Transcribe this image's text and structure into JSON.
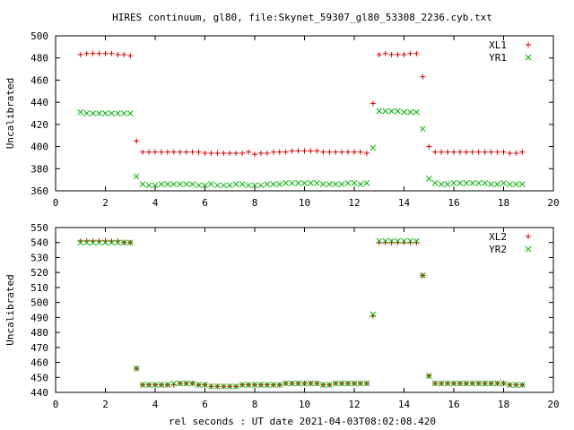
{
  "title": "HIRES continuum, gl80, file:Skynet_59307_gl80_53308_2236.cyb.txt",
  "xlabel": "rel seconds : UT date 2021-04-03T08:02:08.420",
  "colors": {
    "red": "#d40000",
    "green": "#00b000"
  },
  "chart_data": [
    {
      "type": "scatter",
      "ylabel": "Uncalibrated",
      "xlim": [
        0,
        20
      ],
      "ylim": [
        360,
        500
      ],
      "xticks": [
        0,
        2,
        4,
        6,
        8,
        10,
        12,
        14,
        16,
        18,
        20
      ],
      "yticks": [
        360,
        380,
        400,
        420,
        440,
        460,
        480,
        500
      ],
      "legend_position": "top-right",
      "series": [
        {
          "name": "XL1",
          "marker": "plus",
          "color": "#d40000",
          "x": [
            1.0,
            1.25,
            1.5,
            1.75,
            2.0,
            2.25,
            2.5,
            2.75,
            3.0,
            3.25,
            3.5,
            3.75,
            4.0,
            4.25,
            4.5,
            4.75,
            5.0,
            5.25,
            5.5,
            5.75,
            6.0,
            6.25,
            6.5,
            6.75,
            7.0,
            7.25,
            7.5,
            7.75,
            8.0,
            8.25,
            8.5,
            8.75,
            9.0,
            9.25,
            9.5,
            9.75,
            10.0,
            10.25,
            10.5,
            10.75,
            11.0,
            11.25,
            11.5,
            11.75,
            12.0,
            12.25,
            12.5,
            12.75,
            13.0,
            13.25,
            13.5,
            13.75,
            14.0,
            14.25,
            14.5,
            14.75,
            15.0,
            15.25,
            15.5,
            15.75,
            16.0,
            16.25,
            16.5,
            16.75,
            17.0,
            17.25,
            17.5,
            17.75,
            18.0,
            18.25,
            18.5,
            18.75
          ],
          "y": [
            483,
            484,
            484,
            484,
            484,
            484,
            483,
            483,
            482,
            405,
            395,
            395,
            395,
            395,
            395,
            395,
            395,
            395,
            395,
            395,
            394,
            394,
            394,
            394,
            394,
            394,
            394,
            395,
            393,
            394,
            394,
            395,
            395,
            395,
            396,
            396,
            396,
            396,
            396,
            395,
            395,
            395,
            395,
            395,
            395,
            395,
            394,
            439,
            483,
            484,
            483,
            483,
            483,
            484,
            484,
            463,
            400,
            395,
            395,
            395,
            395,
            395,
            395,
            395,
            395,
            395,
            395,
            395,
            395,
            394,
            394,
            395
          ]
        },
        {
          "name": "YR1",
          "marker": "cross",
          "color": "#00b000",
          "x": [
            1.0,
            1.25,
            1.5,
            1.75,
            2.0,
            2.25,
            2.5,
            2.75,
            3.0,
            3.25,
            3.5,
            3.75,
            4.0,
            4.25,
            4.5,
            4.75,
            5.0,
            5.25,
            5.5,
            5.75,
            6.0,
            6.25,
            6.5,
            6.75,
            7.0,
            7.25,
            7.5,
            7.75,
            8.0,
            8.25,
            8.5,
            8.75,
            9.0,
            9.25,
            9.5,
            9.75,
            10.0,
            10.25,
            10.5,
            10.75,
            11.0,
            11.25,
            11.5,
            11.75,
            12.0,
            12.25,
            12.5,
            12.75,
            13.0,
            13.25,
            13.5,
            13.75,
            14.0,
            14.25,
            14.5,
            14.75,
            15.0,
            15.25,
            15.5,
            15.75,
            16.0,
            16.25,
            16.5,
            16.75,
            17.0,
            17.25,
            17.5,
            17.75,
            18.0,
            18.25,
            18.5,
            18.75
          ],
          "y": [
            431,
            430,
            430,
            430,
            430,
            430,
            430,
            430,
            430,
            373,
            366,
            365,
            365,
            366,
            366,
            366,
            366,
            366,
            366,
            365,
            365,
            366,
            365,
            365,
            365,
            366,
            366,
            365,
            365,
            365,
            366,
            366,
            366,
            367,
            367,
            367,
            367,
            367,
            367,
            366,
            366,
            366,
            366,
            367,
            367,
            366,
            367,
            399,
            432,
            432,
            432,
            432,
            431,
            431,
            431,
            416,
            371,
            367,
            366,
            366,
            367,
            367,
            367,
            367,
            367,
            367,
            366,
            366,
            367,
            366,
            366,
            366
          ]
        }
      ]
    },
    {
      "type": "scatter",
      "ylabel": "Uncalibrated",
      "xlim": [
        0,
        20
      ],
      "ylim": [
        440,
        550
      ],
      "xticks": [
        0,
        2,
        4,
        6,
        8,
        10,
        12,
        14,
        16,
        18,
        20
      ],
      "yticks": [
        440,
        450,
        460,
        470,
        480,
        490,
        500,
        510,
        520,
        530,
        540,
        550
      ],
      "legend_position": "top-right",
      "series": [
        {
          "name": "XL2",
          "marker": "plus",
          "color": "#d40000",
          "x": [
            1.0,
            1.25,
            1.5,
            1.75,
            2.0,
            2.25,
            2.5,
            2.75,
            3.0,
            3.25,
            3.5,
            3.75,
            4.0,
            4.25,
            4.5,
            4.75,
            5.0,
            5.25,
            5.5,
            5.75,
            6.0,
            6.25,
            6.5,
            6.75,
            7.0,
            7.25,
            7.5,
            7.75,
            8.0,
            8.25,
            8.5,
            8.75,
            9.0,
            9.25,
            9.5,
            9.75,
            10.0,
            10.25,
            10.5,
            10.75,
            11.0,
            11.25,
            11.5,
            11.75,
            12.0,
            12.25,
            12.5,
            12.75,
            13.0,
            13.25,
            13.5,
            13.75,
            14.0,
            14.25,
            14.5,
            14.75,
            15.0,
            15.25,
            15.5,
            15.75,
            16.0,
            16.25,
            16.5,
            16.75,
            17.0,
            17.25,
            17.5,
            17.75,
            18.0,
            18.25,
            18.5,
            18.75
          ],
          "y": [
            541,
            541,
            541,
            541,
            541,
            541,
            541,
            540,
            540,
            456,
            445,
            445,
            445,
            445,
            445,
            445,
            446,
            446,
            446,
            445,
            445,
            444,
            444,
            444,
            444,
            444,
            445,
            445,
            445,
            445,
            445,
            445,
            445,
            446,
            446,
            446,
            446,
            446,
            446,
            445,
            445,
            446,
            446,
            446,
            446,
            446,
            446,
            491,
            540,
            540,
            540,
            540,
            540,
            540,
            540,
            518,
            451,
            446,
            446,
            446,
            446,
            446,
            446,
            446,
            446,
            446,
            446,
            446,
            446,
            445,
            445,
            445
          ]
        },
        {
          "name": "YR2",
          "marker": "cross",
          "color": "#00b000",
          "x": [
            1.0,
            1.25,
            1.5,
            1.75,
            2.0,
            2.25,
            2.5,
            2.75,
            3.0,
            3.25,
            3.5,
            3.75,
            4.0,
            4.25,
            4.5,
            4.75,
            5.0,
            5.25,
            5.5,
            5.75,
            6.0,
            6.25,
            6.5,
            6.75,
            7.0,
            7.25,
            7.5,
            7.75,
            8.0,
            8.25,
            8.5,
            8.75,
            9.0,
            9.25,
            9.5,
            9.75,
            10.0,
            10.25,
            10.5,
            10.75,
            11.0,
            11.25,
            11.5,
            11.75,
            12.0,
            12.25,
            12.5,
            12.75,
            13.0,
            13.25,
            13.5,
            13.75,
            14.0,
            14.25,
            14.5,
            14.75,
            15.0,
            15.25,
            15.5,
            15.75,
            16.0,
            16.25,
            16.5,
            16.75,
            17.0,
            17.25,
            17.5,
            17.75,
            18.0,
            18.25,
            18.5,
            18.75
          ],
          "y": [
            540,
            540,
            540,
            540,
            540,
            540,
            540,
            540,
            540,
            456,
            445,
            445,
            445,
            445,
            445,
            446,
            446,
            446,
            446,
            445,
            445,
            444,
            444,
            444,
            444,
            444,
            445,
            445,
            445,
            445,
            445,
            445,
            445,
            446,
            446,
            446,
            446,
            446,
            446,
            445,
            445,
            446,
            446,
            446,
            446,
            446,
            446,
            492,
            541,
            541,
            541,
            541,
            541,
            541,
            541,
            518,
            451,
            446,
            446,
            446,
            446,
            446,
            446,
            446,
            446,
            446,
            446,
            446,
            446,
            445,
            445,
            445
          ]
        }
      ]
    }
  ]
}
